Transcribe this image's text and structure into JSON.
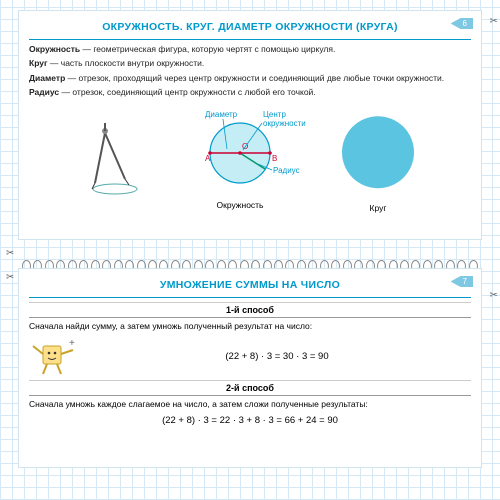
{
  "top": {
    "title": "ОКРУЖНОСТЬ. КРУГ. ДИАМЕТР ОКРУЖНОСТИ (КРУГА)",
    "page": "6",
    "defs": {
      "d1b": "Окружность",
      "d1": " — геометрическая фигура, которую чертят с помощью циркуля.",
      "d2b": "Круг",
      "d2": " — часть плоскости внутри окружности.",
      "d3b": "Диаметр",
      "d3": " — отрезок, проходящий через центр окружности и соединяющий две любые точки окружности.",
      "d4b": "Радиус",
      "d4": " — отрезок, соединяющий центр окружности с любой его точкой."
    },
    "labels": {
      "diameter": "Диаметр",
      "center": "Центр окружности",
      "radius": "Радиус",
      "A": "А",
      "B": "В",
      "O": "О",
      "capCircle": "Окружность",
      "capDisk": "Круг"
    },
    "colors": {
      "accent": "#0099cc",
      "fill": "#7fd3e8",
      "disk": "#5bc4e0"
    }
  },
  "bottom": {
    "title": "УМНОЖЕНИЕ СУММЫ НА ЧИСЛО",
    "page": "7",
    "m1head": "1-й способ",
    "m1text": "Сначала найди сумму, а затем умножь полученный результат на число:",
    "m1eq": "(22 + 8) · 3 = 30 · 3 = 90",
    "m2head": "2-й способ",
    "m2text": "Сначала умножь каждое слагаемое на число, а затем сложи полученные результаты:",
    "m2eq": "(22 + 8) · 3 = 22 · 3 + 8 · 3 = 66 + 24 = 90"
  }
}
